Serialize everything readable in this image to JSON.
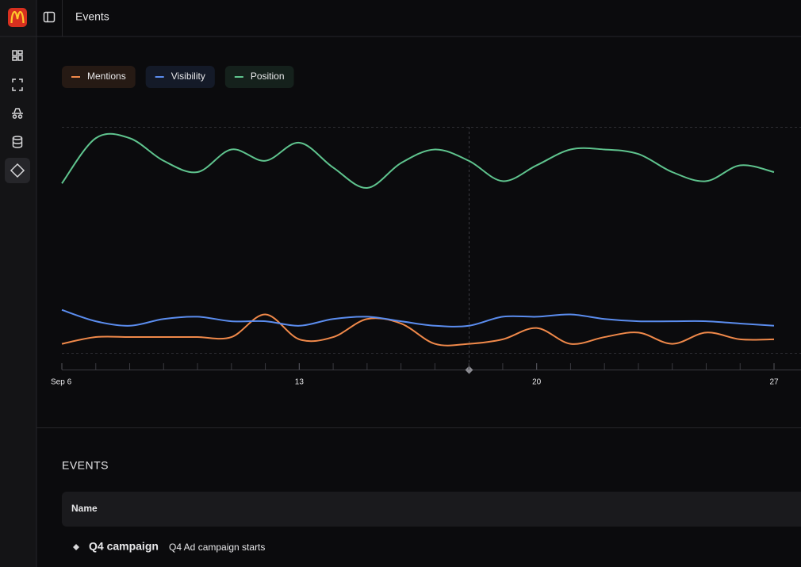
{
  "header": {
    "title": "Events"
  },
  "chart_data": {
    "type": "line",
    "x": [
      6,
      7,
      8,
      9,
      10,
      11,
      12,
      13,
      14,
      15,
      16,
      17,
      18,
      19,
      20,
      21,
      22,
      23,
      24,
      25,
      26,
      27
    ],
    "xlim": [
      6,
      27
    ],
    "xticks": [
      {
        "value": 6,
        "label": "Sep 6"
      },
      13,
      20,
      27
    ],
    "ylim": [
      0,
      100
    ],
    "series": [
      {
        "name": "Mentions",
        "color": "#f0894a",
        "values": [
          4,
          7,
          7,
          7,
          7,
          7,
          17,
          6,
          7,
          15,
          13,
          4,
          4,
          6,
          11,
          4,
          7,
          9,
          4,
          9,
          6,
          6
        ]
      },
      {
        "name": "Visibility",
        "color": "#5b8def",
        "values": [
          19,
          14,
          12,
          15,
          16,
          14,
          14,
          12,
          15,
          16,
          14,
          12,
          12,
          16,
          16,
          17,
          15,
          14,
          14,
          14,
          13,
          12
        ]
      },
      {
        "name": "Position",
        "color": "#5fc48e",
        "values": [
          75,
          95,
          95,
          85,
          80,
          90,
          85,
          93,
          82,
          73,
          84,
          90,
          85,
          76,
          83,
          90,
          90,
          88,
          80,
          76,
          83,
          80
        ]
      }
    ]
  },
  "events": {
    "title": "EVENTS",
    "table": {
      "columns": [
        "Name"
      ],
      "rows": [
        {
          "name": "Q4 campaign",
          "description": "Q4 Ad campaign starts"
        }
      ]
    }
  }
}
